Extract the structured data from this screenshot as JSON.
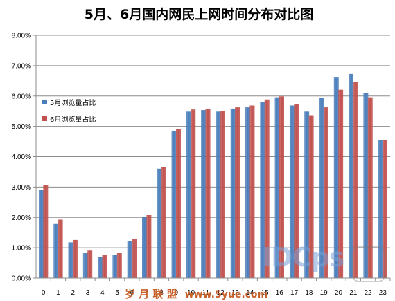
{
  "chart_data": {
    "type": "bar",
    "title": "5月、6月国内网民上网时间分布对比图",
    "categories": [
      "0",
      "1",
      "2",
      "3",
      "4",
      "5",
      "6",
      "7",
      "8",
      "9",
      "10",
      "11",
      "12",
      "13",
      "14",
      "15",
      "16",
      "17",
      "18",
      "19",
      "20",
      "21",
      "22",
      "23"
    ],
    "series": [
      {
        "name": "5月浏览量占比",
        "color": "#4A7EBB",
        "values": [
          2.9,
          1.8,
          1.17,
          0.83,
          0.7,
          0.77,
          1.22,
          2.02,
          3.6,
          4.85,
          5.48,
          5.53,
          5.48,
          5.58,
          5.62,
          5.8,
          5.95,
          5.68,
          5.48,
          5.92,
          6.6,
          6.72,
          6.08,
          4.55
        ]
      },
      {
        "name": "6月浏览量占比",
        "color": "#C0504D",
        "values": [
          3.05,
          1.92,
          1.25,
          0.9,
          0.75,
          0.83,
          1.29,
          2.08,
          3.65,
          4.9,
          5.55,
          5.58,
          5.5,
          5.62,
          5.68,
          5.88,
          5.98,
          5.72,
          5.36,
          5.62,
          6.2,
          6.45,
          5.95,
          4.55
        ]
      }
    ],
    "ylim": [
      0,
      8
    ],
    "yticks": [
      "0.00%",
      "1.00%",
      "2.00%",
      "3.00%",
      "4.00%",
      "5.00%",
      "6.00%",
      "7.00%",
      "8.00%"
    ],
    "grid": true,
    "legend_position": "left"
  },
  "watermarks": {
    "brand": "IDCps",
    "footer_cn": "岁 月 联 盟",
    "footer_url": "www.5yue.com"
  }
}
